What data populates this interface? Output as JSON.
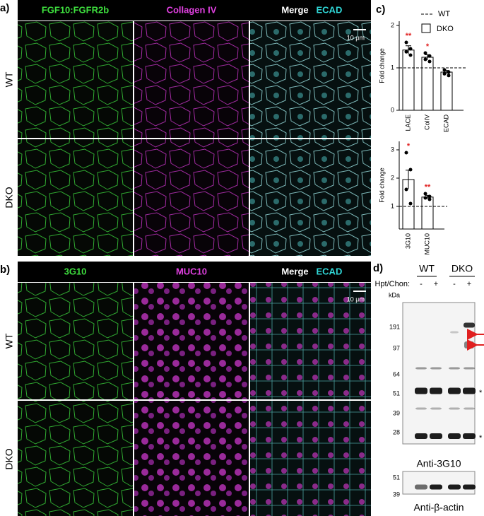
{
  "panels": {
    "a": {
      "label": "a)",
      "columns": [
        "FGF10:FGFR2b",
        "Collagen IV",
        "Merge"
      ],
      "merge_extra": "ECAD",
      "rows": [
        "WT",
        "DKO"
      ],
      "scale_bar": "10 µm"
    },
    "b": {
      "label": "b)",
      "columns": [
        "3G10",
        "MUC10",
        "Merge"
      ],
      "merge_extra": "ECAD",
      "rows": [
        "WT",
        "DKO"
      ],
      "scale_bar": "10 µm"
    },
    "c": {
      "label": "c)",
      "legend": [
        "WT",
        "DKO"
      ],
      "charts": [
        {
          "type": "bar",
          "ylabel": "Fold change",
          "categories": [
            "LACE",
            "ColIV",
            "ECAD"
          ],
          "values": [
            1.42,
            1.25,
            0.9
          ],
          "errors": [
            0.1,
            0.06,
            0.04
          ],
          "points": [
            [
              1.6,
              1.45,
              1.38,
              1.3
            ],
            [
              1.35,
              1.28,
              1.2,
              1.15
            ],
            [
              0.95,
              0.9,
              0.86,
              0.82
            ]
          ],
          "significance": [
            "**",
            "*",
            null
          ],
          "reference": 1,
          "ylim": [
            0,
            2.1
          ],
          "yticks": [
            0,
            1,
            2
          ]
        },
        {
          "type": "bar",
          "ylabel": "Fold change",
          "categories": [
            "3G10",
            "MUC10"
          ],
          "values": [
            1.95,
            1.33
          ],
          "errors": [
            0.33,
            0.06
          ],
          "points": [
            [
              2.9,
              2.3,
              1.6,
              1.1
            ],
            [
              1.45,
              1.35,
              1.3,
              1.25
            ]
          ],
          "significance": [
            "*",
            "**"
          ],
          "reference": 1,
          "ylim": [
            0.2,
            3.3
          ],
          "yticks": [
            1,
            2,
            3
          ]
        }
      ]
    },
    "d": {
      "label": "d)",
      "groups": [
        "WT",
        "DKO"
      ],
      "treatment": "Hpt/Chon:",
      "lanes": [
        "-",
        "+",
        "-",
        "+"
      ],
      "unit": "kDa",
      "markers": [
        191,
        97,
        64,
        51,
        39,
        28
      ],
      "nonspecific": [
        "*",
        "*"
      ],
      "blot_label": "Anti-3G10",
      "loading_markers": [
        51,
        39
      ],
      "loading_label": "Anti-β-actin"
    }
  }
}
